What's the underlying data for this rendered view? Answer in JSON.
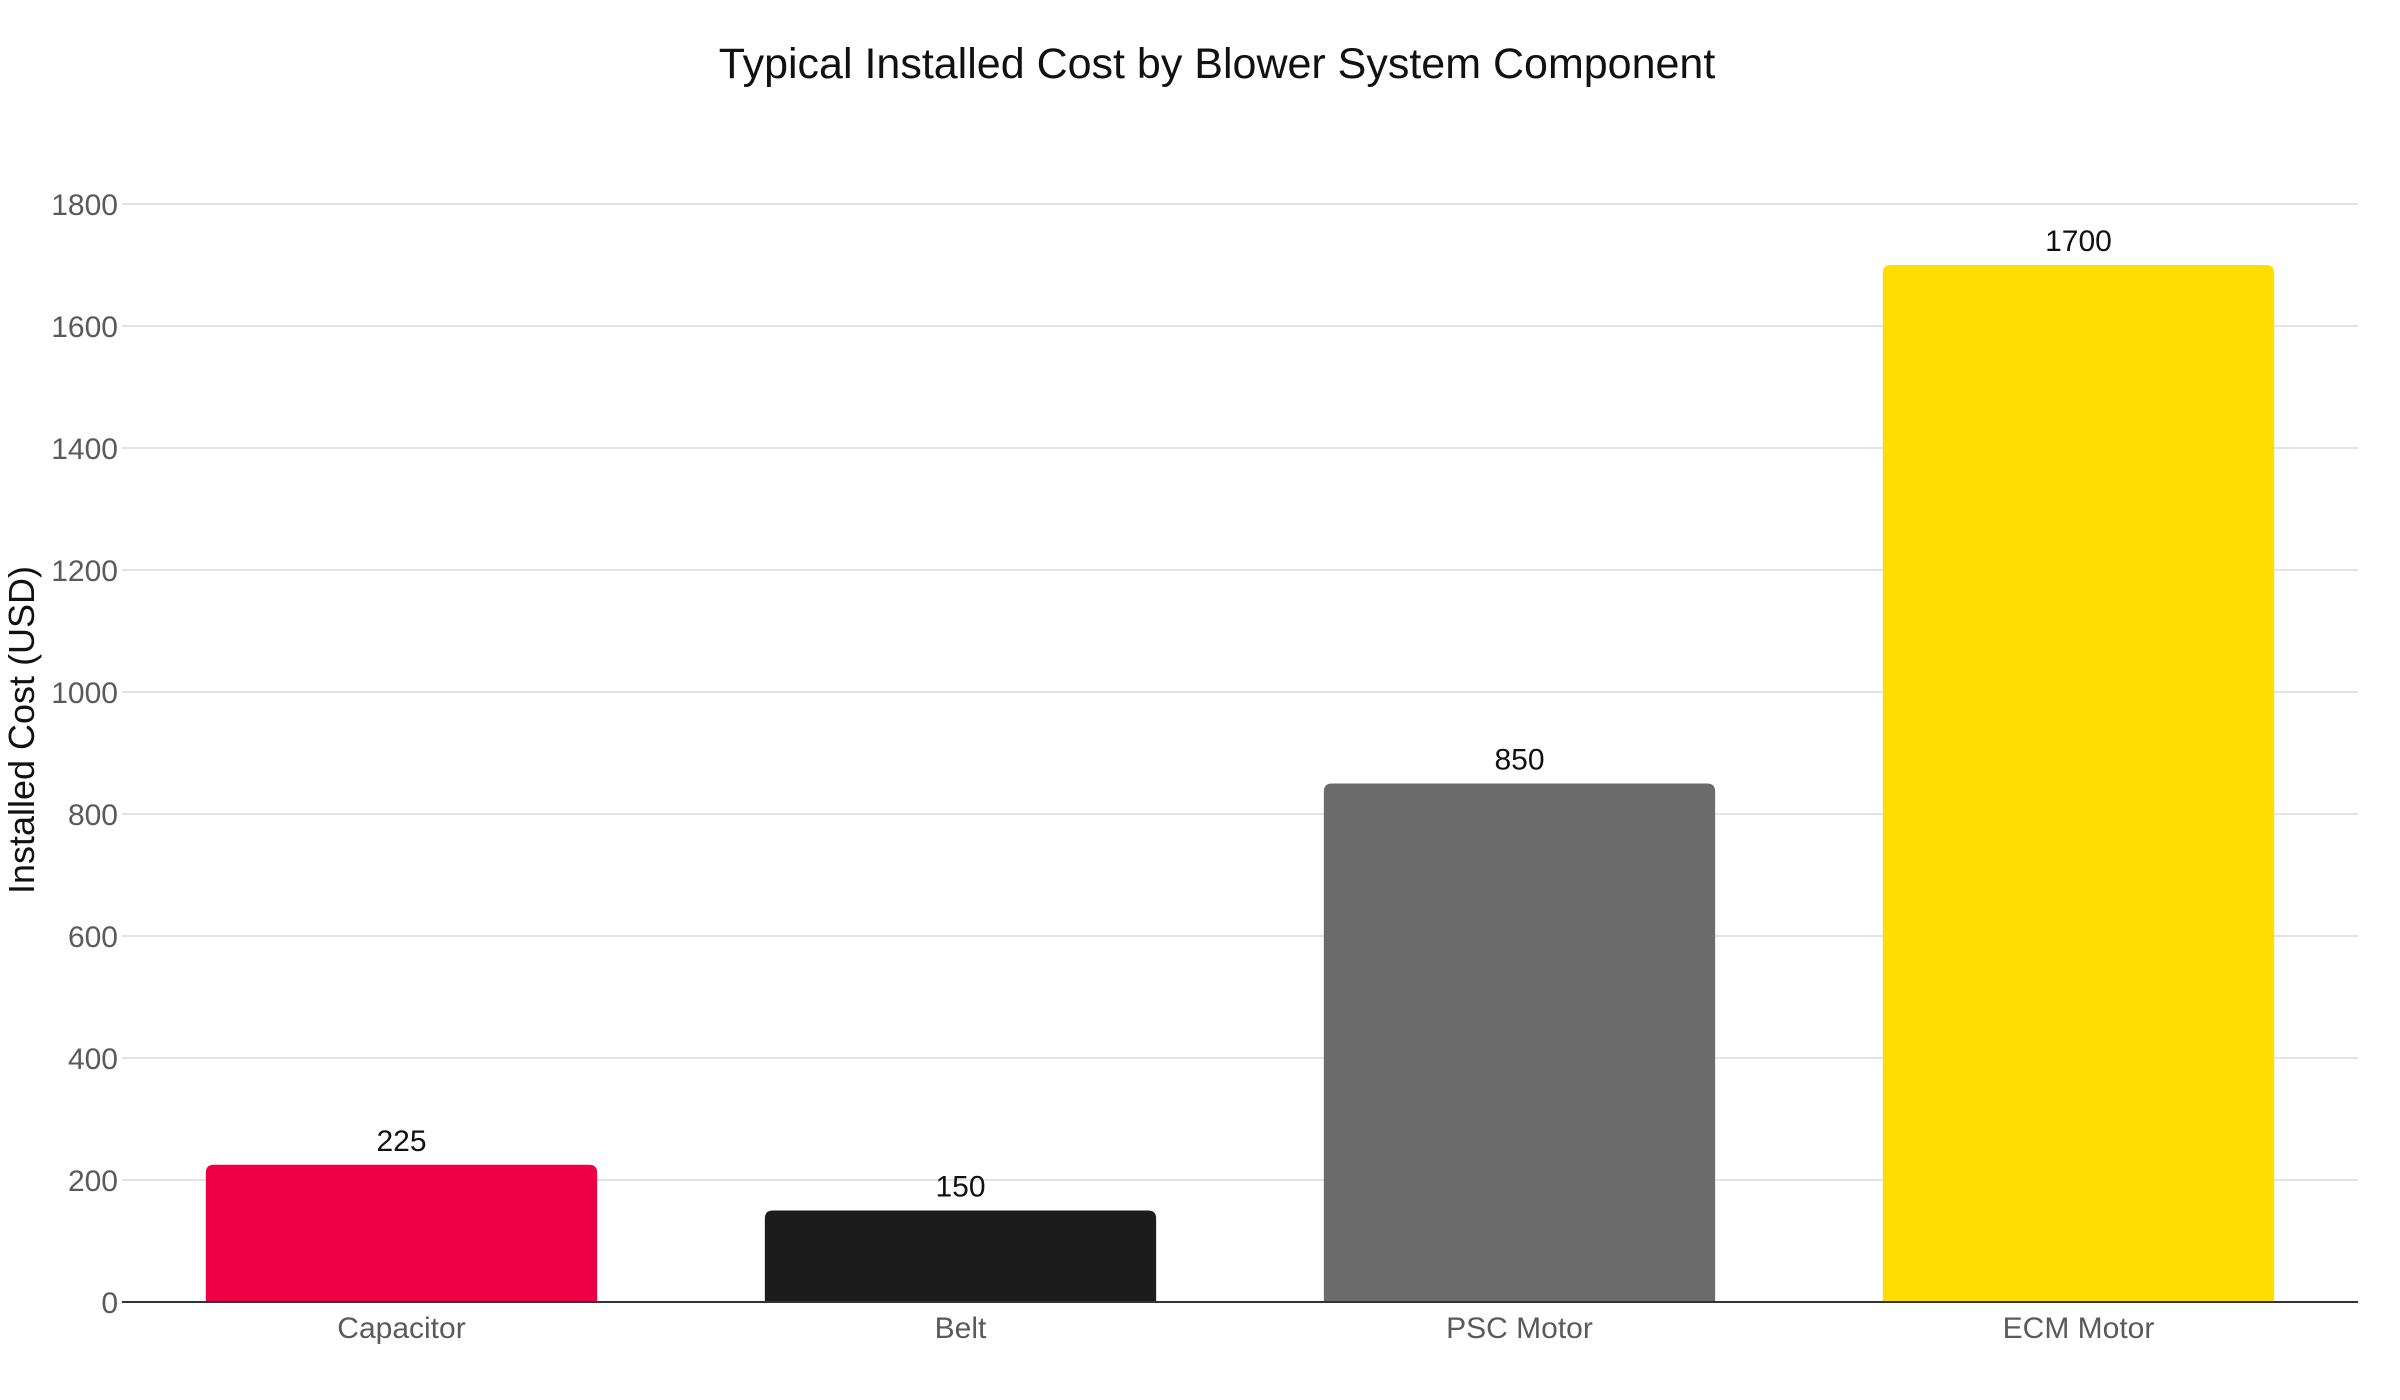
{
  "chart_data": {
    "type": "bar",
    "title": "Typical Installed Cost by Blower System Component",
    "xlabel": "",
    "ylabel": "Installed Cost (USD)",
    "categories": [
      "Capacitor",
      "Belt",
      "PSC Motor",
      "ECM Motor"
    ],
    "values": [
      225,
      150,
      850,
      1700
    ],
    "colors": [
      "#EE0044",
      "#1C1C1C",
      "#6B6B6B",
      "#FFDD00"
    ],
    "ylim": [
      0,
      1800
    ],
    "yticks": [
      0,
      200,
      400,
      600,
      800,
      1000,
      1200,
      1400,
      1600,
      1800
    ],
    "grid": true,
    "legend": "none",
    "data_labels": true
  }
}
